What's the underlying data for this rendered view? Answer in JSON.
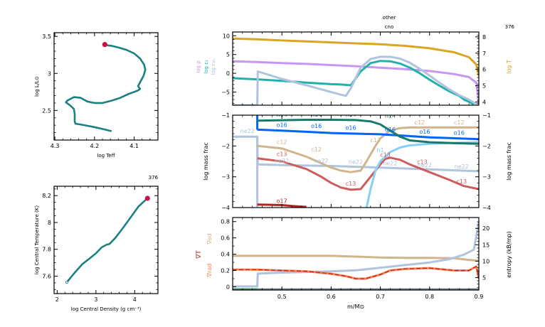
{
  "model_number": "376",
  "colors": {
    "track": "#1a8080",
    "marker": "#cc1144",
    "logT": "#daa520",
    "logRho": "#c896f0",
    "logEps": "#20b2aa",
    "logEpsNu": "#b0c4de",
    "h1": "#87cefa",
    "he4": "#bbbbbb",
    "c12": "#d2b48c",
    "c13": "#cd5c5c",
    "n14": "#1a7a6a",
    "o16": "#0064ff",
    "o17": "#b22222",
    "ne22": "#b0c4de",
    "grad_ad": "#d2b48c",
    "grad_T": "#b22222",
    "grad_rad": "#ff7f50",
    "entropy": "#b0c4de"
  },
  "chart_data": [
    {
      "id": "hr",
      "type": "line",
      "title": "",
      "corner_label": "",
      "xlabel": "log Teff",
      "ylabel": "log L/L⊙",
      "xlim": [
        4.302,
        4.04
      ],
      "ylim": [
        2.1,
        3.55
      ],
      "xticks": [
        4.3,
        4.2,
        4.1
      ],
      "xtick_labels": [
        "4.3",
        "4.2",
        "4.1"
      ],
      "yticks": [
        2.5,
        3,
        3.5
      ],
      "ytick_labels": [
        "2.5",
        "3",
        "3.5"
      ],
      "series": [
        {
          "name": "track",
          "x": [
            4.157,
            4.18,
            4.205,
            4.235,
            4.248,
            4.25,
            4.25,
            4.252,
            4.262,
            4.272,
            4.268,
            4.252,
            4.235,
            4.218,
            4.2,
            4.18,
            4.158,
            4.135,
            4.115,
            4.1,
            4.09,
            4.085,
            4.088,
            4.09,
            4.085,
            4.076,
            4.072,
            4.075,
            4.085,
            4.1,
            4.12,
            4.14,
            4.155,
            4.168,
            4.174
          ],
          "y": [
            2.22,
            2.25,
            2.28,
            2.31,
            2.32,
            2.35,
            2.45,
            2.52,
            2.57,
            2.61,
            2.635,
            2.68,
            2.67,
            2.62,
            2.6,
            2.6,
            2.63,
            2.67,
            2.72,
            2.75,
            2.77,
            2.79,
            2.81,
            2.83,
            2.88,
            2.97,
            3.05,
            3.12,
            3.2,
            3.27,
            3.32,
            3.35,
            3.37,
            3.38,
            3.39
          ]
        }
      ],
      "current_point": {
        "x": 4.174,
        "y": 3.39
      }
    },
    {
      "id": "tc_rhoc",
      "type": "line",
      "corner_label": "376",
      "xlabel": "log Central Density (g cm⁻³)",
      "ylabel": "log Central Temperature (K)",
      "xlim": [
        1.92,
        4.6
      ],
      "ylim": [
        7.47,
        8.27
      ],
      "xticks": [
        2,
        3,
        4
      ],
      "xtick_labels": [
        "2",
        "3",
        "4"
      ],
      "yticks": [
        7.6,
        7.8,
        8,
        8.2
      ],
      "ytick_labels": [
        "7.6",
        "7.8",
        "8",
        "8.2"
      ],
      "series": [
        {
          "name": "track",
          "x": [
            2.25,
            2.45,
            2.65,
            2.85,
            3.0,
            3.15,
            3.28,
            3.35,
            3.5,
            3.7,
            3.9,
            4.1,
            4.25,
            4.33
          ],
          "y": [
            7.555,
            7.625,
            7.69,
            7.735,
            7.77,
            7.815,
            7.835,
            7.84,
            7.885,
            7.96,
            8.04,
            8.12,
            8.16,
            8.18
          ]
        }
      ],
      "current_point": {
        "x": 4.33,
        "y": 8.18
      }
    },
    {
      "id": "profile_top",
      "type": "line",
      "corner_label": "376",
      "header_labels": [
        "other",
        "cno"
      ],
      "ylabel_left": [
        "log ρ",
        "log ε₁",
        "log ενᵤ"
      ],
      "ylabel_right": "log T",
      "xlim": [
        0.4,
        0.9
      ],
      "ylim_left": [
        -8.5,
        11
      ],
      "ylim_right": [
        3.8,
        8.3
      ],
      "yticks_left": [
        -5,
        0,
        5,
        10
      ],
      "ytick_labels_left": [
        "−5",
        "0",
        "5",
        "10"
      ],
      "yticks_right": [
        4,
        5,
        6,
        7,
        8
      ],
      "ytick_labels_right": [
        "4",
        "5",
        "6",
        "7",
        "8"
      ],
      "series": [
        {
          "name": "log T",
          "axis": "right",
          "x": [
            0.4,
            0.45,
            0.5,
            0.55,
            0.6,
            0.65,
            0.7,
            0.75,
            0.8,
            0.85,
            0.88,
            0.895,
            0.9
          ],
          "y": [
            7.9,
            7.85,
            7.78,
            7.72,
            7.66,
            7.6,
            7.55,
            7.45,
            7.3,
            7.05,
            6.75,
            6.3,
            5.6
          ]
        },
        {
          "name": "log rho",
          "x": [
            0.4,
            0.45,
            0.5,
            0.55,
            0.6,
            0.65,
            0.7,
            0.75,
            0.8,
            0.85,
            0.88,
            0.895,
            0.9
          ],
          "y": [
            3.2,
            3.0,
            2.7,
            2.5,
            2.2,
            1.9,
            1.5,
            1.1,
            0.6,
            -0.2,
            -1.0,
            -2.5,
            -8.0
          ]
        },
        {
          "name": "log eps_nuc",
          "x": [
            0.4,
            0.45,
            0.5,
            0.55,
            0.6,
            0.62,
            0.64,
            0.66,
            0.68,
            0.7,
            0.72,
            0.74,
            0.76,
            0.78,
            0.8,
            0.82,
            0.84,
            0.86,
            0.87,
            0.88,
            0.89
          ],
          "y": [
            -1.3,
            -1.6,
            -2.0,
            -2.5,
            -2.9,
            -3.0,
            -3.2,
            0.5,
            2.7,
            3.3,
            3.2,
            2.6,
            1.5,
            0.0,
            -1.7,
            -3.3,
            -4.8,
            -6.0,
            -7.0,
            -7.6,
            -8.3
          ]
        },
        {
          "name": "log eps_nu",
          "x": [
            0.4,
            0.45,
            0.451,
            0.5,
            0.55,
            0.6,
            0.62,
            0.63,
            0.64,
            0.66,
            0.68,
            0.7,
            0.72,
            0.74,
            0.76,
            0.78,
            0.8,
            0.82,
            0.84,
            0.86,
            0.88,
            0.89,
            0.9
          ],
          "y": [
            -8.5,
            -8.5,
            0.5,
            -1.5,
            -3.2,
            -5.0,
            -5.7,
            -6.0,
            -4.0,
            1.5,
            3.8,
            4.4,
            4.4,
            3.9,
            2.8,
            1.2,
            -0.6,
            -2.5,
            -4.3,
            -5.8,
            -7.0,
            -7.8,
            -8.5
          ]
        }
      ]
    },
    {
      "id": "profile_mid",
      "type": "line",
      "ylabel": "log mass frac",
      "xlim": [
        0.4,
        0.9
      ],
      "ylim": [
        -4,
        -1
      ],
      "yticks": [
        -4,
        -3,
        -2,
        -1
      ],
      "ytick_labels": [
        "−4",
        "−3",
        "−2",
        "−1"
      ],
      "series": [
        {
          "name": "n14",
          "x": [
            0.45,
            0.55,
            0.6,
            0.65,
            0.68,
            0.7,
            0.72,
            0.74,
            0.76,
            0.8,
            0.85,
            0.9
          ],
          "y": [
            -1.18,
            -1.15,
            -1.15,
            -1.16,
            -1.2,
            -1.3,
            -1.5,
            -1.7,
            -1.82,
            -1.88,
            -1.91,
            -1.93
          ]
        },
        {
          "name": "o16",
          "x": [
            0.45,
            0.5,
            0.55,
            0.6,
            0.65,
            0.7,
            0.75,
            0.8,
            0.85,
            0.9
          ],
          "y": [
            -1.47,
            -1.5,
            -1.54,
            -1.58,
            -1.6,
            -1.62,
            -1.67,
            -1.72,
            -1.75,
            -1.78
          ]
        },
        {
          "name": "c12",
          "x": [
            0.45,
            0.5,
            0.55,
            0.6,
            0.62,
            0.64,
            0.66,
            0.67,
            0.69,
            0.7,
            0.72,
            0.74,
            0.76,
            0.8,
            0.85,
            0.9
          ],
          "y": [
            -2.0,
            -2.08,
            -2.35,
            -2.7,
            -2.8,
            -2.85,
            -2.8,
            -2.55,
            -2.0,
            -1.75,
            -1.5,
            -1.42,
            -1.4,
            -1.4,
            -1.4,
            -1.4
          ]
        },
        {
          "name": "c13",
          "x": [
            0.45,
            0.5,
            0.55,
            0.58,
            0.6,
            0.62,
            0.64,
            0.66,
            0.68,
            0.7,
            0.71,
            0.72,
            0.74,
            0.76,
            0.8,
            0.84,
            0.87,
            0.9
          ],
          "y": [
            -2.4,
            -2.5,
            -2.75,
            -3.0,
            -3.2,
            -3.35,
            -3.42,
            -3.4,
            -3.0,
            -2.6,
            -2.42,
            -2.38,
            -2.45,
            -2.6,
            -2.85,
            -3.1,
            -3.3,
            -3.4
          ]
        },
        {
          "name": "h1",
          "x": [
            0.672,
            0.68,
            0.69,
            0.7,
            0.72,
            0.74,
            0.76,
            0.8,
            0.85,
            0.9
          ],
          "y": [
            -4.0,
            -3.4,
            -2.8,
            -2.5,
            -2.2,
            -2.05,
            -1.98,
            -1.93,
            -1.9,
            -1.88
          ]
        },
        {
          "name": "ne22",
          "x": [
            0.4,
            0.45,
            0.451,
            0.5,
            0.6,
            0.7,
            0.8,
            0.9
          ],
          "y": [
            -1.7,
            -1.7,
            -2.6,
            -2.62,
            -2.65,
            -2.7,
            -2.76,
            -2.82
          ]
        },
        {
          "name": "ne22-drop",
          "x": [
            0.45,
            0.45
          ],
          "y": [
            -1.7,
            -4.0
          ]
        },
        {
          "name": "o17",
          "x": [
            0.45,
            0.5,
            0.52,
            0.55
          ],
          "y": [
            -3.9,
            -3.92,
            -3.95,
            -3.98
          ]
        },
        {
          "name": "o16-drop",
          "x": [
            0.45,
            0.45
          ],
          "y": [
            -1.0,
            -1.47
          ]
        }
      ],
      "line_labels": [
        {
          "text": "n14",
          "series": "n14",
          "x": 0.5,
          "y": -1.05
        },
        {
          "text": "n14",
          "series": "n14",
          "x": 0.57,
          "y": -1.05
        },
        {
          "text": "n14",
          "series": "n14",
          "x": 0.64,
          "y": -1.05
        },
        {
          "text": "n14",
          "series": "n14",
          "x": 0.72,
          "y": -1.08
        },
        {
          "text": "o16",
          "series": "o16",
          "x": 0.5,
          "y": -1.38
        },
        {
          "text": "o16",
          "series": "o16",
          "x": 0.57,
          "y": -1.42
        },
        {
          "text": "o16",
          "series": "o16",
          "x": 0.64,
          "y": -1.47
        },
        {
          "text": "o16",
          "series": "o16",
          "x": 0.72,
          "y": -1.53
        },
        {
          "text": "o16",
          "series": "o16",
          "x": 0.79,
          "y": -1.6
        },
        {
          "text": "o16",
          "series": "o16",
          "x": 0.86,
          "y": -1.63
        },
        {
          "text": "c12",
          "series": "c12",
          "x": 0.5,
          "y": -1.93
        },
        {
          "text": "c12",
          "series": "c12",
          "x": 0.57,
          "y": -2.18
        },
        {
          "text": "c12",
          "series": "c12",
          "x": 0.69,
          "y": -1.88
        },
        {
          "text": "c12",
          "series": "c12",
          "x": 0.78,
          "y": -1.3
        },
        {
          "text": "c12",
          "series": "c12",
          "x": 0.86,
          "y": -1.3
        },
        {
          "text": "c13",
          "series": "c13",
          "x": 0.5,
          "y": -2.33
        },
        {
          "text": "c13",
          "series": "c13",
          "x": 0.64,
          "y": -3.28
        },
        {
          "text": "c13",
          "series": "c13",
          "x": 0.71,
          "y": -2.35
        },
        {
          "text": "c13",
          "series": "c13",
          "x": 0.785,
          "y": -2.58
        },
        {
          "text": "c13",
          "series": "c13",
          "x": 0.865,
          "y": -3.22
        },
        {
          "text": "ne22",
          "series": "ne22",
          "x": 0.43,
          "y": -1.58
        },
        {
          "text": "ne22",
          "series": "ne22",
          "x": 0.5,
          "y": -2.55
        },
        {
          "text": "ne22",
          "series": "ne22",
          "x": 0.58,
          "y": -2.55
        },
        {
          "text": "ne22",
          "series": "ne22",
          "x": 0.65,
          "y": -2.58
        },
        {
          "text": "ne22",
          "series": "ne22",
          "x": 0.72,
          "y": -2.63
        },
        {
          "text": "ne22",
          "series": "ne22",
          "x": 0.79,
          "y": -2.68
        },
        {
          "text": "ne22",
          "series": "ne22",
          "x": 0.865,
          "y": -2.73
        },
        {
          "text": "h1",
          "series": "h1",
          "x": 0.7,
          "y": -2.2
        },
        {
          "text": "o17",
          "series": "o17",
          "x": 0.5,
          "y": -3.85
        }
      ]
    },
    {
      "id": "profile_bottom",
      "type": "line",
      "xlabel": "m/M⊙",
      "ylabel_left": [
        "∇ad",
        "∇T",
        "∇rad"
      ],
      "ylabel_right": "entropy (kB/mp)",
      "xlim": [
        0.4,
        0.9
      ],
      "ylim_left": [
        -0.04,
        0.85
      ],
      "ylim_right": [
        1.2,
        23.3
      ],
      "xticks": [
        0.5,
        0.6,
        0.7,
        0.8,
        0.9
      ],
      "xtick_labels": [
        "0.5",
        "0.6",
        "0.7",
        "0.8",
        "0.9"
      ],
      "yticks_left": [
        0,
        0.2,
        0.4,
        0.6,
        0.8
      ],
      "ytick_labels_left": [
        "0",
        "0.2",
        "0.4",
        "0.6",
        "0.8"
      ],
      "yticks_right": [
        5,
        10,
        15,
        20
      ],
      "ytick_labels_right": [
        "5",
        "10",
        "15",
        "20"
      ],
      "series": [
        {
          "name": "grad_ad",
          "x": [
            0.4,
            0.5,
            0.6,
            0.65,
            0.7,
            0.75,
            0.8,
            0.85,
            0.88,
            0.9
          ],
          "y": [
            0.38,
            0.38,
            0.38,
            0.37,
            0.36,
            0.355,
            0.355,
            0.35,
            0.33,
            0.32
          ]
        },
        {
          "name": "entropy",
          "axis": "right",
          "x": [
            0.4,
            0.45,
            0.451,
            0.5,
            0.55,
            0.6,
            0.65,
            0.7,
            0.75,
            0.8,
            0.84,
            0.87,
            0.89,
            0.9
          ],
          "y": [
            2.3,
            2.3,
            6.2,
            6.5,
            6.7,
            6.9,
            7.2,
            8.0,
            8.8,
            9.6,
            10.6,
            12.0,
            13.5,
            22
          ]
        },
        {
          "name": "grad_rad",
          "x": [
            0.4,
            0.45,
            0.5,
            0.55,
            0.6,
            0.63,
            0.65,
            0.67,
            0.7,
            0.72,
            0.75,
            0.8,
            0.85,
            0.88,
            0.895,
            0.9
          ],
          "y": [
            0.21,
            0.21,
            0.2,
            0.19,
            0.16,
            0.13,
            0.1,
            0.1,
            0.15,
            0.2,
            0.22,
            0.23,
            0.2,
            0.2,
            0.25,
            0.1
          ]
        },
        {
          "name": "grad_T",
          "x": [
            0.4,
            0.45,
            0.5,
            0.55,
            0.6,
            0.63,
            0.65,
            0.67,
            0.7,
            0.72,
            0.75,
            0.8,
            0.85,
            0.88,
            0.895,
            0.9
          ],
          "y": [
            0.21,
            0.21,
            0.2,
            0.19,
            0.16,
            0.13,
            0.1,
            0.1,
            0.15,
            0.2,
            0.22,
            0.23,
            0.2,
            0.2,
            0.25,
            0.1
          ]
        },
        {
          "name": "baseline",
          "x": [
            0.4,
            0.9
          ],
          "y": [
            -0.03,
            -0.03
          ]
        }
      ]
    }
  ]
}
